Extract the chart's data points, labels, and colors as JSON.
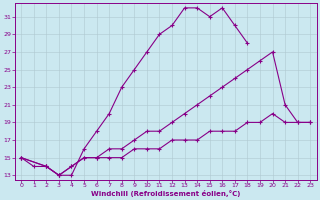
{
  "xlabel": "Windchill (Refroidissement éolien,°C)",
  "bg_color": "#cbe8f0",
  "line_color": "#880088",
  "grid_color": "#b0c8d0",
  "xlim": [
    -0.5,
    23.5
  ],
  "ylim": [
    12.5,
    32.5
  ],
  "xticks": [
    0,
    1,
    2,
    3,
    4,
    5,
    6,
    7,
    8,
    9,
    10,
    11,
    12,
    13,
    14,
    15,
    16,
    17,
    18,
    19,
    20,
    21,
    22,
    23
  ],
  "yticks": [
    13,
    15,
    17,
    19,
    21,
    23,
    25,
    27,
    29,
    31
  ],
  "line1_x": [
    0,
    1,
    2,
    3,
    4,
    5,
    6,
    7,
    8,
    9,
    10,
    11,
    12,
    13,
    14,
    15,
    16,
    17,
    18
  ],
  "line1_y": [
    15,
    14,
    14,
    13,
    13,
    16,
    18,
    20,
    23,
    25,
    27,
    29,
    30,
    32,
    32,
    31,
    32,
    30,
    28
  ],
  "line2_x": [
    0,
    2,
    3,
    4,
    5,
    6,
    7,
    8,
    9,
    10,
    11,
    12,
    13,
    14,
    15,
    16,
    17,
    18,
    19,
    20,
    21,
    22,
    23
  ],
  "line2_y": [
    15,
    14,
    13,
    14,
    15,
    15,
    16,
    16,
    17,
    18,
    18,
    19,
    20,
    21,
    22,
    23,
    24,
    25,
    26,
    27,
    21,
    19,
    19
  ],
  "line3_x": [
    0,
    2,
    3,
    4,
    5,
    6,
    7,
    8,
    9,
    10,
    11,
    12,
    13,
    14,
    15,
    16,
    17,
    18,
    19,
    20,
    21,
    22,
    23
  ],
  "line3_y": [
    15,
    14,
    13,
    14,
    15,
    15,
    15,
    15,
    16,
    16,
    16,
    17,
    17,
    17,
    18,
    18,
    18,
    19,
    19,
    20,
    19,
    19,
    19
  ],
  "marker": "+",
  "markersize": 2.5,
  "linewidth": 0.8,
  "tick_fontsize": 4.5,
  "xlabel_fontsize": 5.0
}
